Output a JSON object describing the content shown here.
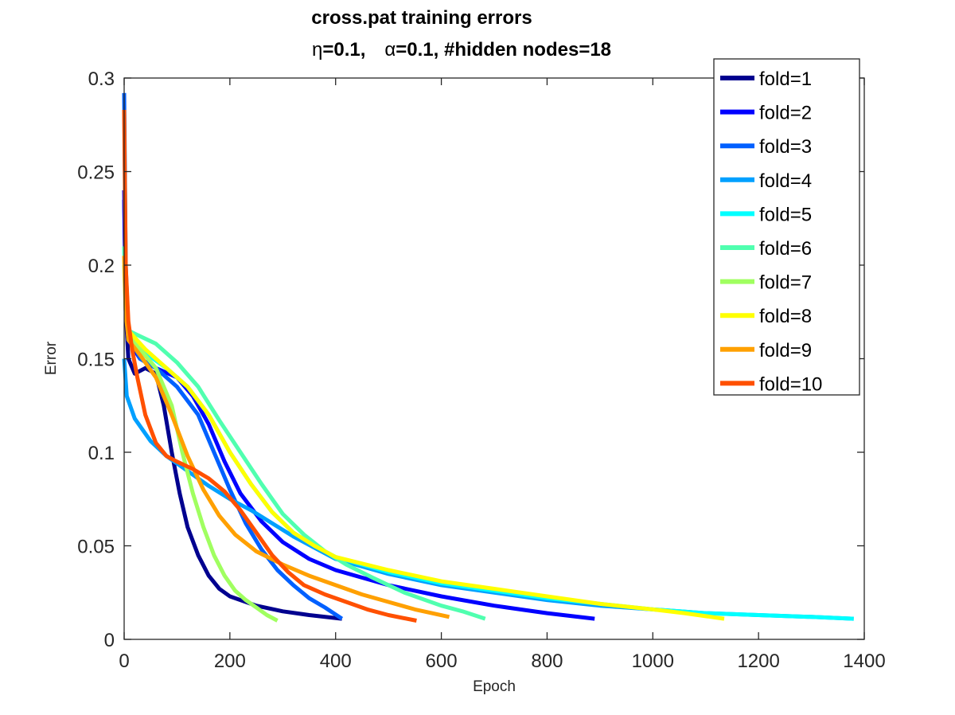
{
  "chart_data": {
    "type": "line",
    "title_line1": "cross.pat training errors",
    "title_line2": {
      "eta_symbol": "η",
      "eta_text": "=0.1,",
      "alpha_symbol": "α",
      "alpha_text": "=0.1, #hidden nodes=18"
    },
    "xlabel": "Epoch",
    "ylabel": "Error",
    "xlim": [
      0,
      1400
    ],
    "ylim": [
      0,
      0.3
    ],
    "xticks": [
      "0",
      "200",
      "400",
      "600",
      "800",
      "1000",
      "1200",
      "1400"
    ],
    "yticks": [
      "0",
      "0.05",
      "0.1",
      "0.15",
      "0.2",
      "0.25",
      "0.3"
    ],
    "grid": false,
    "legend_position": "top-right",
    "series": [
      {
        "name": "fold=1",
        "color": "#00008f",
        "points": [
          [
            0,
            0.235
          ],
          [
            3,
            0.175
          ],
          [
            8,
            0.15
          ],
          [
            20,
            0.142
          ],
          [
            40,
            0.145
          ],
          [
            60,
            0.142
          ],
          [
            75,
            0.125
          ],
          [
            90,
            0.1
          ],
          [
            105,
            0.078
          ],
          [
            120,
            0.06
          ],
          [
            140,
            0.045
          ],
          [
            160,
            0.034
          ],
          [
            180,
            0.027
          ],
          [
            200,
            0.023
          ],
          [
            250,
            0.018
          ],
          [
            300,
            0.015
          ],
          [
            350,
            0.013
          ],
          [
            412,
            0.011
          ]
        ]
      },
      {
        "name": "fold=2",
        "color": "#0000ff",
        "points": [
          [
            0,
            0.24
          ],
          [
            3,
            0.18
          ],
          [
            8,
            0.16
          ],
          [
            30,
            0.15
          ],
          [
            60,
            0.145
          ],
          [
            100,
            0.14
          ],
          [
            130,
            0.13
          ],
          [
            160,
            0.115
          ],
          [
            190,
            0.095
          ],
          [
            220,
            0.078
          ],
          [
            260,
            0.063
          ],
          [
            300,
            0.052
          ],
          [
            350,
            0.043
          ],
          [
            400,
            0.037
          ],
          [
            500,
            0.029
          ],
          [
            600,
            0.023
          ],
          [
            700,
            0.018
          ],
          [
            800,
            0.014
          ],
          [
            890,
            0.011
          ]
        ]
      },
      {
        "name": "fold=3",
        "color": "#0060ff",
        "points": [
          [
            0,
            0.292
          ],
          [
            3,
            0.2
          ],
          [
            8,
            0.165
          ],
          [
            30,
            0.15
          ],
          [
            60,
            0.145
          ],
          [
            100,
            0.135
          ],
          [
            140,
            0.12
          ],
          [
            170,
            0.1
          ],
          [
            200,
            0.08
          ],
          [
            230,
            0.062
          ],
          [
            260,
            0.048
          ],
          [
            290,
            0.037
          ],
          [
            320,
            0.029
          ],
          [
            350,
            0.022
          ],
          [
            380,
            0.017
          ],
          [
            412,
            0.011
          ]
        ]
      },
      {
        "name": "fold=4",
        "color": "#00a0ff",
        "points": [
          [
            0,
            0.15
          ],
          [
            5,
            0.13
          ],
          [
            20,
            0.118
          ],
          [
            50,
            0.106
          ],
          [
            80,
            0.098
          ],
          [
            120,
            0.09
          ],
          [
            160,
            0.082
          ],
          [
            200,
            0.075
          ],
          [
            240,
            0.069
          ],
          [
            280,
            0.062
          ],
          [
            320,
            0.055
          ],
          [
            360,
            0.049
          ],
          [
            400,
            0.043
          ],
          [
            500,
            0.035
          ],
          [
            600,
            0.029
          ],
          [
            700,
            0.025
          ],
          [
            800,
            0.021
          ],
          [
            900,
            0.018
          ],
          [
            1000,
            0.016
          ],
          [
            1100,
            0.014
          ],
          [
            1200,
            0.013
          ],
          [
            1300,
            0.012
          ],
          [
            1380,
            0.011
          ]
        ]
      },
      {
        "name": "fold=5",
        "color": "#00ffff",
        "points": [
          [
            0,
            0.21
          ],
          [
            3,
            0.18
          ],
          [
            8,
            0.16
          ],
          [
            40,
            0.153
          ],
          [
            80,
            0.145
          ],
          [
            120,
            0.135
          ],
          [
            160,
            0.12
          ],
          [
            200,
            0.1
          ],
          [
            240,
            0.083
          ],
          [
            280,
            0.068
          ],
          [
            320,
            0.057
          ],
          [
            360,
            0.05
          ],
          [
            400,
            0.044
          ],
          [
            500,
            0.036
          ],
          [
            600,
            0.03
          ],
          [
            700,
            0.026
          ],
          [
            800,
            0.022
          ],
          [
            900,
            0.019
          ],
          [
            1000,
            0.016
          ],
          [
            1100,
            0.014
          ],
          [
            1200,
            0.013
          ],
          [
            1300,
            0.012
          ],
          [
            1380,
            0.011
          ]
        ]
      },
      {
        "name": "fold=6",
        "color": "#50ffaf",
        "points": [
          [
            0,
            0.21
          ],
          [
            3,
            0.18
          ],
          [
            8,
            0.165
          ],
          [
            30,
            0.162
          ],
          [
            60,
            0.158
          ],
          [
            100,
            0.148
          ],
          [
            140,
            0.135
          ],
          [
            180,
            0.117
          ],
          [
            220,
            0.1
          ],
          [
            260,
            0.083
          ],
          [
            300,
            0.067
          ],
          [
            340,
            0.056
          ],
          [
            380,
            0.047
          ],
          [
            420,
            0.04
          ],
          [
            470,
            0.033
          ],
          [
            530,
            0.025
          ],
          [
            600,
            0.018
          ],
          [
            640,
            0.015
          ],
          [
            683,
            0.011
          ]
        ]
      },
      {
        "name": "fold=7",
        "color": "#a0ff60",
        "points": [
          [
            0,
            0.2
          ],
          [
            3,
            0.175
          ],
          [
            8,
            0.162
          ],
          [
            30,
            0.155
          ],
          [
            60,
            0.145
          ],
          [
            90,
            0.125
          ],
          [
            110,
            0.1
          ],
          [
            130,
            0.078
          ],
          [
            150,
            0.06
          ],
          [
            170,
            0.045
          ],
          [
            190,
            0.034
          ],
          [
            210,
            0.026
          ],
          [
            230,
            0.021
          ],
          [
            250,
            0.017
          ],
          [
            270,
            0.013
          ],
          [
            290,
            0.01
          ]
        ]
      },
      {
        "name": "fold=8",
        "color": "#ffff00",
        "points": [
          [
            0,
            0.205
          ],
          [
            3,
            0.178
          ],
          [
            8,
            0.165
          ],
          [
            40,
            0.155
          ],
          [
            80,
            0.145
          ],
          [
            120,
            0.135
          ],
          [
            160,
            0.12
          ],
          [
            200,
            0.1
          ],
          [
            240,
            0.083
          ],
          [
            280,
            0.068
          ],
          [
            320,
            0.057
          ],
          [
            360,
            0.05
          ],
          [
            400,
            0.044
          ],
          [
            500,
            0.037
          ],
          [
            600,
            0.031
          ],
          [
            700,
            0.027
          ],
          [
            800,
            0.023
          ],
          [
            900,
            0.019
          ],
          [
            1000,
            0.016
          ],
          [
            1060,
            0.014
          ],
          [
            1135,
            0.011
          ]
        ]
      },
      {
        "name": "fold=9",
        "color": "#ffa000",
        "points": [
          [
            0,
            0.205
          ],
          [
            3,
            0.175
          ],
          [
            8,
            0.16
          ],
          [
            30,
            0.152
          ],
          [
            60,
            0.14
          ],
          [
            90,
            0.12
          ],
          [
            120,
            0.098
          ],
          [
            150,
            0.08
          ],
          [
            180,
            0.066
          ],
          [
            210,
            0.056
          ],
          [
            250,
            0.047
          ],
          [
            300,
            0.04
          ],
          [
            350,
            0.034
          ],
          [
            400,
            0.029
          ],
          [
            450,
            0.024
          ],
          [
            500,
            0.02
          ],
          [
            550,
            0.016
          ],
          [
            615,
            0.012
          ]
        ]
      },
      {
        "name": "fold=10",
        "color": "#ff5000",
        "points": [
          [
            0,
            0.283
          ],
          [
            3,
            0.2
          ],
          [
            8,
            0.17
          ],
          [
            15,
            0.155
          ],
          [
            25,
            0.14
          ],
          [
            40,
            0.12
          ],
          [
            60,
            0.105
          ],
          [
            80,
            0.098
          ],
          [
            100,
            0.095
          ],
          [
            130,
            0.091
          ],
          [
            160,
            0.086
          ],
          [
            190,
            0.079
          ],
          [
            220,
            0.069
          ],
          [
            250,
            0.057
          ],
          [
            280,
            0.045
          ],
          [
            310,
            0.036
          ],
          [
            340,
            0.029
          ],
          [
            380,
            0.024
          ],
          [
            420,
            0.02
          ],
          [
            460,
            0.016
          ],
          [
            500,
            0.013
          ],
          [
            553,
            0.01
          ]
        ]
      }
    ]
  }
}
